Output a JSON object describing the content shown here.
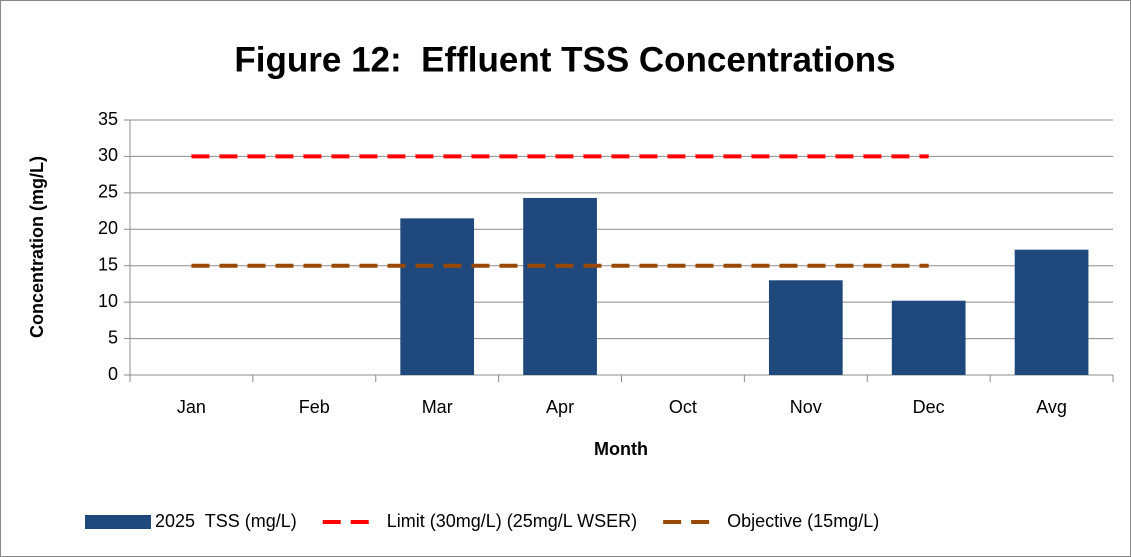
{
  "chart_data": {
    "type": "bar",
    "title": "Figure 12:  Effluent TSS Concentrations",
    "x_label": "Month",
    "y_label": "Concentration (mg/L)",
    "categories": [
      "Jan",
      "Feb",
      "Mar",
      "Apr",
      "Oct",
      "Nov",
      "Dec",
      "Avg"
    ],
    "series": [
      {
        "name": "2025  TSS (mg/L)",
        "type": "bar",
        "color": "#1f497d",
        "values": [
          null,
          null,
          21.5,
          24.3,
          null,
          13,
          10.2,
          17.2
        ]
      },
      {
        "name": "Limit (30mg/L) (25mg/L WSER)",
        "type": "line",
        "color": "#ff0000",
        "values": [
          30,
          30,
          30,
          30,
          30,
          30,
          30,
          null
        ]
      },
      {
        "name": "Objective (15mg/L)",
        "type": "line",
        "color": "#984807",
        "values": [
          15,
          15,
          15,
          15,
          15,
          15,
          15,
          null
        ]
      }
    ],
    "ylim": [
      0,
      35
    ],
    "yticks": [
      0,
      5,
      10,
      15,
      20,
      25,
      30,
      35
    ],
    "grid": true,
    "legend": "bottom"
  }
}
